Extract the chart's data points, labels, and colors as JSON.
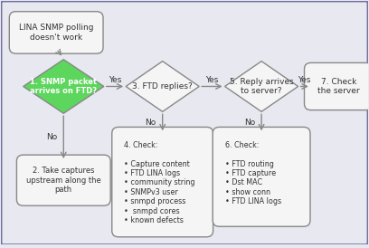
{
  "bg_color": "#e8e8f0",
  "border_color": "#7070a0",
  "rect_bg": "#f5f5f5",
  "diamond1_color": "#5cd65c",
  "diamond_border": "#888888",
  "rect_border": "#888888",
  "arrow_color": "#888888",
  "text_color": "#333333",
  "title_text": "LINA SNMP polling\ndoesn't work",
  "d1_text": "1. SNMP packet\narrives on FTD?",
  "d2_text": "3. FTD replies?",
  "d3_text": "5. Reply arrives\nto server?",
  "r7_text": "7. Check\nthe server",
  "r2_text": "2. Take captures\nupstream along the\npath",
  "r4_text": "4. Check:\n\n• Capture content\n• FTD LINA logs\n• community string\n• SNMPv3 user\n• snmpd process\n•  snmpd cores\n• known defects",
  "r6_text": "6. Check:\n\n• FTD routing\n• FTD capture\n• Dst MAC\n• show conn\n• FTD LINA logs"
}
